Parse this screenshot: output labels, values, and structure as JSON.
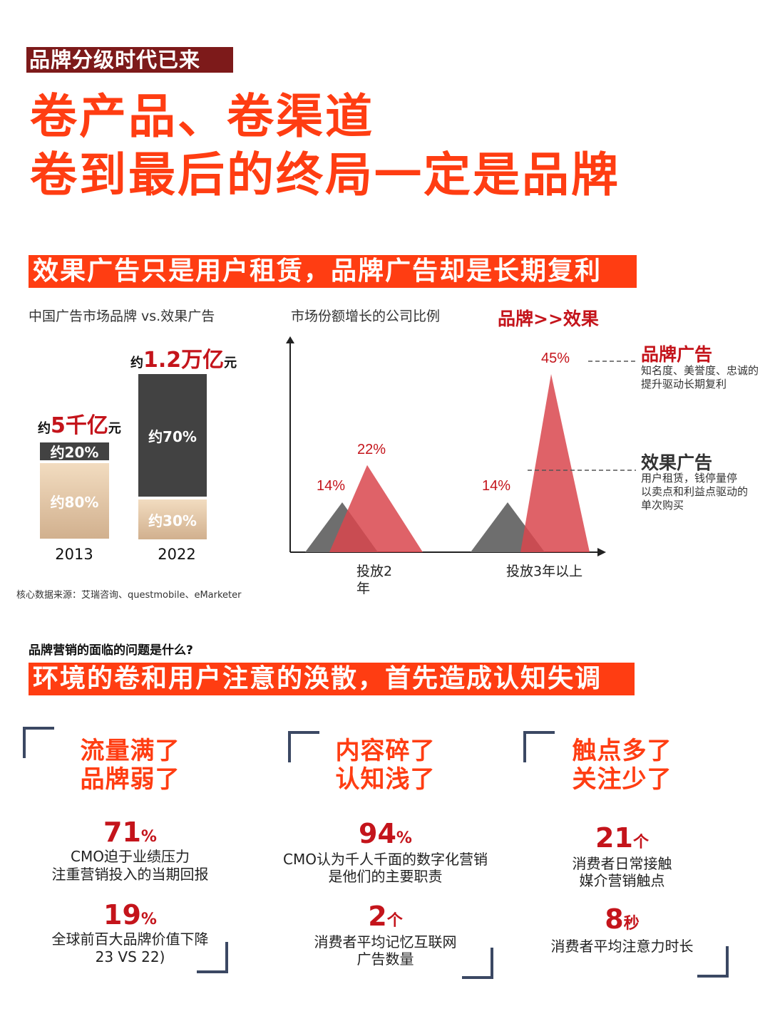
{
  "header": {
    "tag": "品牌分级时代已来",
    "headline_line1": "卷产品、卷渠道",
    "headline_line2": "卷到最后的终局一定是品牌"
  },
  "section1": {
    "banner": "效果广告只是用户租赁，品牌广告却是长期复利"
  },
  "bar_chart": {
    "title": "中国广告市场品牌 vs.效果广告",
    "source": "核心数据来源：艾瑞咨询、questmobile、eMarketer",
    "bars": [
      {
        "year": "2013",
        "total_prefix": "约",
        "total_value": "5千亿",
        "total_unit": "元",
        "top_label": "约20%",
        "bottom_label": "约80%"
      },
      {
        "year": "2022",
        "total_prefix": "约",
        "total_value": "1.2万亿",
        "total_unit": "元",
        "top_label": "约70%",
        "bottom_label": "约30%"
      }
    ],
    "colors": {
      "brand": "#d9bb99",
      "performance": "#424242"
    }
  },
  "triangle_chart": {
    "title": "市场份额增长的公司比例",
    "header_note": "品牌>>效果",
    "groups": [
      {
        "label": "投放2年",
        "performance_label": "14%",
        "brand_label": "22%"
      },
      {
        "label": "投放3年以上",
        "performance_label": "14%",
        "brand_label": "45%"
      }
    ],
    "annotations": [
      {
        "title": "品牌广告",
        "desc_line1": "知名度、美誉度、忠诚的",
        "desc_line2": "提升驱动长期复利",
        "color": "#c4141b"
      },
      {
        "title": "效果广告",
        "desc_line1": "用户租赁，钱停量停",
        "desc_line2": "以卖点和利益点驱动的",
        "desc_line3": "单次购买",
        "color": "#333333"
      }
    ],
    "colors": {
      "brand": "#d9474d",
      "performance": "#6e6e6e"
    }
  },
  "chart_data": [
    {
      "type": "bar",
      "title": "中国广告市场品牌 vs.效果广告",
      "categories": [
        "2013",
        "2022"
      ],
      "totals": [
        "约5千亿元",
        "约1.2万亿元"
      ],
      "series": [
        {
          "name": "",
          "values": [
            80,
            30
          ]
        },
        {
          "name": "",
          "values": [
            20,
            70
          ]
        }
      ]
    },
    {
      "type": "area",
      "title": "市场份额增长的公司比例",
      "categories": [
        "投放2年",
        "投放3年以上"
      ],
      "series": [
        {
          "name": "效果广告",
          "values": [
            14,
            14
          ]
        },
        {
          "name": "品牌广告",
          "values": [
            22,
            45
          ]
        }
      ]
    }
  ],
  "section2": {
    "question": "品牌营销的面临的问题是什么?",
    "banner": "环境的卷和用户注意的涣散，首先造成认知失调"
  },
  "cards": [
    {
      "title_line1": "流量满了",
      "title_line2": "品牌弱了",
      "stat1_value": "71",
      "stat1_unit": "%",
      "stat1_line1": "CMO迫于业绩压力",
      "stat1_line2": "注重营销投入的当期回报",
      "stat2_value": "19",
      "stat2_unit": "%",
      "stat2_line1": "全球前百大品牌价值下降",
      "stat2_line2": "23 VS 22)"
    },
    {
      "title_line1": "内容碎了",
      "title_line2": "认知浅了",
      "stat1_value": "94",
      "stat1_unit": "%",
      "stat1_line1": "CMO认为千人千面的数字化营销",
      "stat1_line2": "是他们的主要职责",
      "stat2_value": "2",
      "stat2_unit": "个",
      "stat2_line1": "消费者平均记忆互联网",
      "stat2_line2": "广告数量"
    },
    {
      "title_line1": "触点多了",
      "title_line2": "关注少了",
      "stat1_value": "21",
      "stat1_unit": "个",
      "stat1_line1": "消费者日常接触",
      "stat1_line2": "媒介营销触点",
      "stat2_value": "8",
      "stat2_unit": "秒",
      "stat2_line1": "消费者平均注意力时长",
      "stat2_line2": ""
    }
  ]
}
